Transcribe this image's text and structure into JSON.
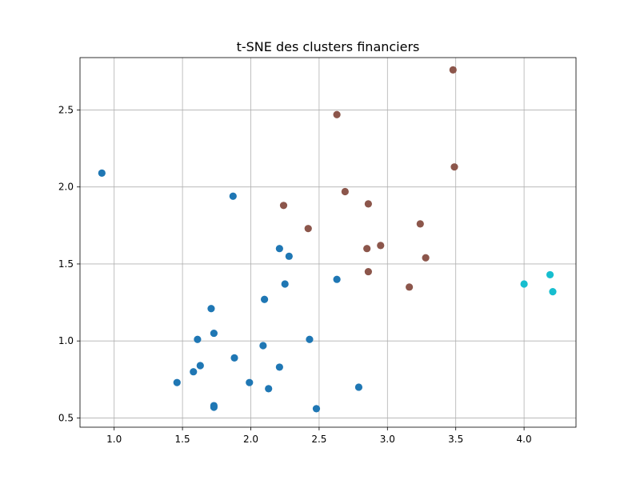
{
  "chart_data": {
    "type": "scatter",
    "title": "t-SNE des clusters financiers",
    "xlabel": "",
    "ylabel": "",
    "xlim": [
      0.75,
      4.38
    ],
    "ylim": [
      0.44,
      2.84
    ],
    "xticks": [
      1.0,
      1.5,
      2.0,
      2.5,
      3.0,
      3.5,
      4.0
    ],
    "xtick_labels": [
      "1.0",
      "1.5",
      "2.0",
      "2.5",
      "3.0",
      "3.5",
      "4.0"
    ],
    "yticks": [
      0.5,
      1.0,
      1.5,
      2.0,
      2.5
    ],
    "ytick_labels": [
      "0.5",
      "1.0",
      "1.5",
      "2.0",
      "2.5"
    ],
    "grid": true,
    "legend": "none",
    "series": [
      {
        "color": "#1f77b4",
        "points": [
          {
            "x": 0.91,
            "y": 2.09
          },
          {
            "x": 1.87,
            "y": 1.94
          },
          {
            "x": 2.21,
            "y": 1.6
          },
          {
            "x": 2.28,
            "y": 1.55
          },
          {
            "x": 2.25,
            "y": 1.37
          },
          {
            "x": 2.63,
            "y": 1.4
          },
          {
            "x": 2.1,
            "y": 1.27
          },
          {
            "x": 1.71,
            "y": 1.21
          },
          {
            "x": 1.73,
            "y": 1.05
          },
          {
            "x": 1.61,
            "y": 1.01
          },
          {
            "x": 2.09,
            "y": 0.97
          },
          {
            "x": 2.43,
            "y": 1.01
          },
          {
            "x": 1.88,
            "y": 0.89
          },
          {
            "x": 1.63,
            "y": 0.84
          },
          {
            "x": 1.58,
            "y": 0.8
          },
          {
            "x": 2.21,
            "y": 0.83
          },
          {
            "x": 1.46,
            "y": 0.73
          },
          {
            "x": 1.99,
            "y": 0.73
          },
          {
            "x": 2.13,
            "y": 0.69
          },
          {
            "x": 2.79,
            "y": 0.7
          },
          {
            "x": 1.73,
            "y": 0.58
          },
          {
            "x": 1.73,
            "y": 0.57
          },
          {
            "x": 2.48,
            "y": 0.56
          }
        ]
      },
      {
        "color": "#8c564b",
        "points": [
          {
            "x": 3.48,
            "y": 2.76
          },
          {
            "x": 2.63,
            "y": 2.47
          },
          {
            "x": 3.49,
            "y": 2.13
          },
          {
            "x": 2.69,
            "y": 1.97
          },
          {
            "x": 2.24,
            "y": 1.88
          },
          {
            "x": 2.86,
            "y": 1.89
          },
          {
            "x": 2.42,
            "y": 1.73
          },
          {
            "x": 3.24,
            "y": 1.76
          },
          {
            "x": 2.85,
            "y": 1.6
          },
          {
            "x": 2.95,
            "y": 1.62
          },
          {
            "x": 3.28,
            "y": 1.54
          },
          {
            "x": 2.86,
            "y": 1.45
          },
          {
            "x": 3.16,
            "y": 1.35
          }
        ]
      },
      {
        "color": "#17becf",
        "points": [
          {
            "x": 4.0,
            "y": 1.37
          },
          {
            "x": 4.19,
            "y": 1.43
          },
          {
            "x": 4.21,
            "y": 1.32
          }
        ]
      }
    ]
  }
}
